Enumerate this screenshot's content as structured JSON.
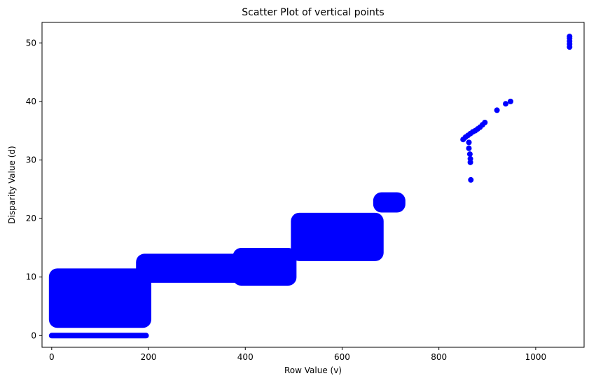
{
  "chart_data": {
    "type": "scatter",
    "title": "Scatter Plot of vertical points",
    "xlabel": "Row Value (v)",
    "ylabel": "Disparity Value (d)",
    "xlim": [
      -20,
      1100
    ],
    "ylim": [
      -2,
      53.5
    ],
    "xticks": [
      0,
      200,
      400,
      600,
      800,
      1000
    ],
    "yticks": [
      0,
      10,
      20,
      30,
      40,
      50
    ],
    "grid": false,
    "legend": "none",
    "color": "#0000ff",
    "clusters": [
      {
        "kind": "hline",
        "x0": 0,
        "x1": 195,
        "y": 0
      },
      {
        "kind": "band",
        "x0": 0,
        "x1": 200,
        "ylow": 1.8,
        "yhigh": 11
      },
      {
        "kind": "band",
        "x0": 180,
        "x1": 400,
        "ylow": 9.5,
        "yhigh": 13.5
      },
      {
        "kind": "band",
        "x0": 380,
        "x1": 500,
        "ylow": 9,
        "yhigh": 14.5
      },
      {
        "kind": "band",
        "x0": 500,
        "x1": 680,
        "ylow": 13.2,
        "yhigh": 20.5
      },
      {
        "kind": "band",
        "x0": 670,
        "x1": 725,
        "ylow": 21.5,
        "yhigh": 24
      }
    ],
    "points": [
      {
        "x": 850,
        "y": 33.5
      },
      {
        "x": 855,
        "y": 33.9
      },
      {
        "x": 860,
        "y": 34.2
      },
      {
        "x": 865,
        "y": 34.5
      },
      {
        "x": 870,
        "y": 34.8
      },
      {
        "x": 875,
        "y": 35.0
      },
      {
        "x": 880,
        "y": 35.3
      },
      {
        "x": 885,
        "y": 35.6
      },
      {
        "x": 890,
        "y": 36.0
      },
      {
        "x": 895,
        "y": 36.4
      },
      {
        "x": 862,
        "y": 33.0
      },
      {
        "x": 862,
        "y": 32.0
      },
      {
        "x": 864,
        "y": 31.0
      },
      {
        "x": 865,
        "y": 30.2
      },
      {
        "x": 865,
        "y": 29.6
      },
      {
        "x": 866,
        "y": 26.6
      },
      {
        "x": 920,
        "y": 38.5
      },
      {
        "x": 938,
        "y": 39.6
      },
      {
        "x": 948,
        "y": 40.0
      },
      {
        "x": 1070,
        "y": 49.3
      },
      {
        "x": 1070,
        "y": 49.8
      },
      {
        "x": 1070,
        "y": 50.3
      },
      {
        "x": 1070,
        "y": 50.8
      },
      {
        "x": 1070,
        "y": 51.1
      }
    ]
  }
}
